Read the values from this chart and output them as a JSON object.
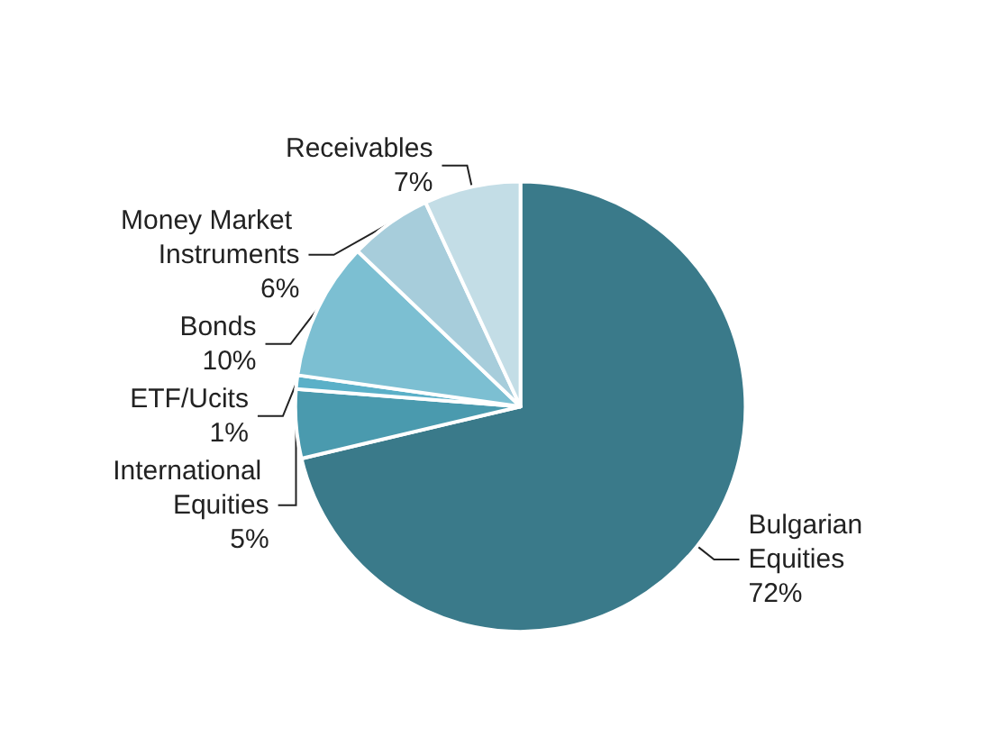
{
  "chart_data": {
    "type": "pie",
    "categories": [
      "Bulgarian Equities",
      "International Equities",
      "ETF/Ucits",
      "Bonds",
      "Money Market Instruments",
      "Receivables"
    ],
    "values": [
      72,
      5,
      1,
      10,
      6,
      7
    ],
    "value_labels": [
      "72%",
      "5%",
      "1%",
      "10%",
      "6%",
      "7%"
    ],
    "colors": [
      "#3a7a8a",
      "#4a9aae",
      "#5bb0c8",
      "#7cbfd2",
      "#a7cddb",
      "#c3dde6"
    ],
    "legend": false
  }
}
